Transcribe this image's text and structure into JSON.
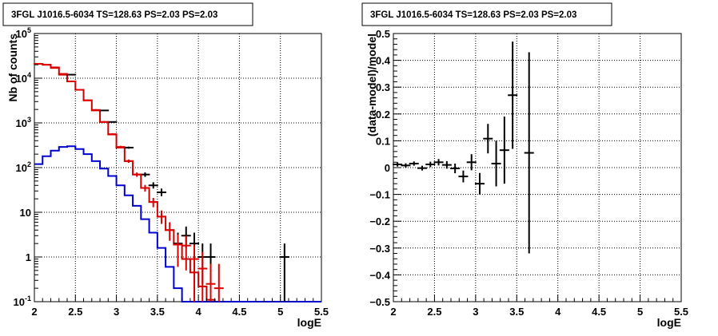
{
  "chart_data": [
    {
      "type": "line",
      "title": "3FGL J1016.5-6034 TS=128.63 PS=2.03 PS=2.03",
      "xlabel": "logE",
      "ylabel": "Nb of counts",
      "xlim": [
        2,
        5.5
      ],
      "ylim": [
        0.1,
        100000
      ],
      "yscale": "log",
      "grid": true,
      "x_ticks": [
        "2",
        "2.5",
        "3",
        "3.5",
        "4",
        "4.5",
        "5",
        "5.5"
      ],
      "y_ticks": [
        {
          "value": 0.1,
          "base": "10",
          "exp": "-1"
        },
        {
          "value": 1,
          "base": "1",
          "exp": ""
        },
        {
          "value": 10,
          "base": "10",
          "exp": ""
        },
        {
          "value": 100,
          "base": "10",
          "exp": "2"
        },
        {
          "value": 1000,
          "base": "10",
          "exp": "3"
        },
        {
          "value": 10000,
          "base": "10",
          "exp": "4"
        },
        {
          "value": 100000,
          "base": "10",
          "exp": "5"
        }
      ],
      "bin_edges": [
        2.0,
        2.1,
        2.2,
        2.3,
        2.4,
        2.5,
        2.6,
        2.7,
        2.8,
        2.9,
        3.0,
        3.1,
        3.2,
        3.3,
        3.4,
        3.5,
        3.6,
        3.7,
        3.8,
        3.9,
        4.0,
        4.1,
        4.2,
        4.3,
        4.4,
        4.5,
        4.6,
        4.7,
        4.8,
        4.9,
        5.0,
        5.1,
        5.2,
        5.3,
        5.4,
        5.5
      ],
      "series": [
        {
          "name": "",
          "kind": "histogram",
          "color": "#cc0000",
          "values": [
            21000,
            20000,
            17000,
            12000,
            8500,
            5500,
            3200,
            1900,
            1050,
            550,
            280,
            140,
            70,
            35,
            17,
            8,
            4,
            1.9,
            0.9,
            0.45,
            0.22,
            0.11,
            0.1,
            0.1,
            0.1,
            0.1,
            0.1,
            0.1,
            0.1,
            0.1,
            0.1,
            0.1,
            0.1,
            0.1,
            0.1
          ]
        },
        {
          "name": "",
          "kind": "histogram",
          "color": "#0000cc",
          "values": [
            120,
            180,
            240,
            290,
            300,
            260,
            200,
            140,
            95,
            65,
            40,
            24,
            14,
            7,
            3.5,
            1.6,
            0.6,
            0.2,
            0.1,
            0.1,
            0.1,
            0.1,
            0.1,
            0.1,
            0.1,
            0.1,
            0.1,
            0.1,
            0.1,
            0.1,
            0.1,
            0.1,
            0.1,
            0.1,
            0.1
          ]
        },
        {
          "name": "",
          "kind": "points",
          "color": "#000000",
          "points": [
            {
              "x": 2.45,
              "y": 12000,
              "lo": 11800,
              "hi": 12200
            },
            {
              "x": 2.85,
              "y": 1900,
              "lo": 1860,
              "hi": 1940
            },
            {
              "x": 2.95,
              "y": 1050,
              "lo": 1020,
              "hi": 1080
            },
            {
              "x": 3.15,
              "y": 280,
              "lo": 265,
              "hi": 295
            },
            {
              "x": 3.35,
              "y": 70,
              "lo": 62,
              "hi": 78
            },
            {
              "x": 3.45,
              "y": 40,
              "lo": 34,
              "hi": 47
            },
            {
              "x": 3.55,
              "y": 28,
              "lo": 23,
              "hi": 34
            },
            {
              "x": 3.75,
              "y": 2,
              "lo": 0.9,
              "hi": 3.5
            },
            {
              "x": 3.85,
              "y": 3,
              "lo": 1.6,
              "hi": 4.8
            },
            {
              "x": 3.95,
              "y": 2,
              "lo": 0.9,
              "hi": 3.5
            },
            {
              "x": 4.05,
              "y": 1,
              "lo": 0.25,
              "hi": 2
            },
            {
              "x": 4.15,
              "y": 1,
              "lo": 0.25,
              "hi": 2
            },
            {
              "x": 5.05,
              "y": 1,
              "lo": 0.1,
              "hi": 2
            }
          ]
        },
        {
          "name": "",
          "kind": "points",
          "color": "#dd0000",
          "points": [
            {
              "x": 2.05,
              "y": 21000,
              "lo": 20700,
              "hi": 21300
            },
            {
              "x": 2.15,
              "y": 20000,
              "lo": 19700,
              "hi": 20300
            },
            {
              "x": 2.25,
              "y": 17500,
              "lo": 17200,
              "hi": 17800
            },
            {
              "x": 2.35,
              "y": 12500,
              "lo": 12250,
              "hi": 12750
            },
            {
              "x": 2.45,
              "y": 8500,
              "lo": 8300,
              "hi": 8700
            },
            {
              "x": 2.55,
              "y": 5500,
              "lo": 5350,
              "hi": 5650
            },
            {
              "x": 2.65,
              "y": 3200,
              "lo": 3090,
              "hi": 3310
            },
            {
              "x": 2.75,
              "y": 1950,
              "lo": 1870,
              "hi": 2030
            },
            {
              "x": 2.85,
              "y": 1050,
              "lo": 1000,
              "hi": 1100
            },
            {
              "x": 2.95,
              "y": 560,
              "lo": 530,
              "hi": 590
            },
            {
              "x": 3.05,
              "y": 290,
              "lo": 272,
              "hi": 308
            },
            {
              "x": 3.15,
              "y": 140,
              "lo": 128,
              "hi": 152
            },
            {
              "x": 3.25,
              "y": 70,
              "lo": 62,
              "hi": 78
            },
            {
              "x": 3.35,
              "y": 35,
              "lo": 29,
              "hi": 41
            },
            {
              "x": 3.45,
              "y": 17,
              "lo": 13,
              "hi": 21
            },
            {
              "x": 3.55,
              "y": 8,
              "lo": 5.5,
              "hi": 11
            },
            {
              "x": 3.65,
              "y": 4,
              "lo": 2.3,
              "hi": 6
            },
            {
              "x": 3.75,
              "y": 1.9,
              "lo": 0.6,
              "hi": 3.2
            },
            {
              "x": 3.85,
              "y": 1.8,
              "lo": 0.5,
              "hi": 3
            },
            {
              "x": 3.95,
              "y": 0.9,
              "lo": 0.1,
              "hi": 1.9
            },
            {
              "x": 4.05,
              "y": 0.55,
              "lo": 0.1,
              "hi": 1.3
            },
            {
              "x": 4.15,
              "y": 0.25,
              "lo": 0.1,
              "hi": 0.7
            },
            {
              "x": 4.25,
              "y": 0.2,
              "lo": 0.1,
              "hi": 0.7
            }
          ]
        }
      ]
    },
    {
      "type": "scatter",
      "title": "3FGL J1016.5-6034 TS=128.63 PS=2.03 PS=2.03",
      "xlabel": "logE",
      "ylabel": "(data-model)/model",
      "xlim": [
        2,
        5.5
      ],
      "ylim": [
        -0.5,
        0.5
      ],
      "grid": true,
      "x_ticks": [
        "2",
        "2.5",
        "3",
        "3.5",
        "4",
        "4.5",
        "5",
        "5.5"
      ],
      "y_ticks": [
        "−0.5",
        "−0.4",
        "−0.3",
        "−0.2",
        "−0.1",
        "0",
        "0.1",
        "0.2",
        "0.3",
        "0.4",
        "0.5"
      ],
      "y_tick_values": [
        -0.5,
        -0.4,
        -0.3,
        -0.2,
        -0.1,
        0,
        0.1,
        0.2,
        0.3,
        0.4,
        0.5
      ],
      "series": [
        {
          "name": "",
          "color": "#000000",
          "points": [
            {
              "x": 2.05,
              "y": 0.012,
              "err": 0.008
            },
            {
              "x": 2.15,
              "y": 0.008,
              "err": 0.008
            },
            {
              "x": 2.25,
              "y": 0.015,
              "err": 0.008
            },
            {
              "x": 2.35,
              "y": -0.002,
              "err": 0.009
            },
            {
              "x": 2.45,
              "y": 0.012,
              "err": 0.01
            },
            {
              "x": 2.55,
              "y": 0.02,
              "err": 0.012
            },
            {
              "x": 2.65,
              "y": 0.01,
              "err": 0.014
            },
            {
              "x": 2.75,
              "y": -0.003,
              "err": 0.018
            },
            {
              "x": 2.85,
              "y": -0.033,
              "err": 0.022
            },
            {
              "x": 2.95,
              "y": 0.02,
              "err": 0.03
            },
            {
              "x": 3.05,
              "y": -0.06,
              "err": 0.04
            },
            {
              "x": 3.15,
              "y": 0.108,
              "err": 0.055
            },
            {
              "x": 3.25,
              "y": 0.015,
              "err": 0.085
            },
            {
              "x": 3.35,
              "y": 0.065,
              "err": 0.125
            },
            {
              "x": 3.45,
              "y": 0.27,
              "err": 0.2
            },
            {
              "x": 3.65,
              "y": 0.055,
              "err": 0.375
            }
          ]
        }
      ]
    }
  ]
}
